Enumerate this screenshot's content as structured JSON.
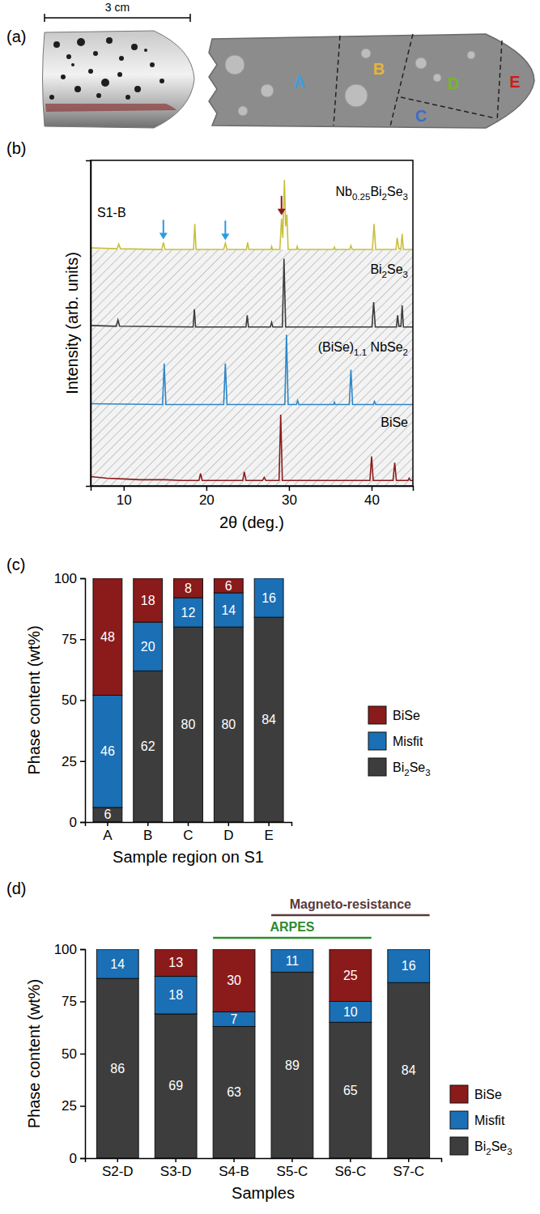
{
  "diagram": {
    "panel": "(a)",
    "scale_bar": "3 cm",
    "regions": [
      {
        "label": "A",
        "color": "#3a9fe0"
      },
      {
        "label": "B",
        "color": "#e6b43a"
      },
      {
        "label": "C",
        "color": "#3a6cc8"
      },
      {
        "label": "D",
        "color": "#76b52e"
      },
      {
        "label": "E",
        "color": "#d01a1a"
      }
    ]
  },
  "chart_data": [
    {
      "type": "line",
      "panel": "(b)",
      "x_label": "2θ (deg.)",
      "y_label": "Intensity (arb. units)",
      "xlim": [
        6,
        45
      ],
      "xticks": [
        10,
        20,
        30,
        40
      ],
      "ylim": [
        0,
        4.2
      ],
      "yticks": [],
      "tick_labels": "x",
      "annotations": [
        {
          "text": "S1-B"
        }
      ],
      "arrows": [
        {
          "x": 14.8,
          "color": "#2b9be0"
        },
        {
          "x": 22.3,
          "color": "#2b9be0"
        },
        {
          "x": 29.1,
          "color": "#8b1a1a"
        }
      ],
      "series": [
        {
          "name": "Nb0.25Bi2Se3",
          "color": "#c9bf3e",
          "x": [
            6,
            9.2,
            9.4,
            9.6,
            14.6,
            14.8,
            15.0,
            18.45,
            18.6,
            18.75,
            22.1,
            22.3,
            22.5,
            24.85,
            25.0,
            25.15,
            27.8,
            27.9,
            28.0,
            28.9,
            29.1,
            29.25,
            29.45,
            29.6,
            29.75,
            29.9,
            30.9,
            31.0,
            31.1,
            35.4,
            35.5,
            35.6,
            37.35,
            37.5,
            37.65,
            40.1,
            40.3,
            40.5,
            42.95,
            43.1,
            43.3,
            43.55,
            43.7,
            43.85,
            45
          ],
          "values": [
            3.07,
            3.06,
            3.12,
            3.06,
            3.05,
            3.14,
            3.05,
            3.05,
            3.38,
            3.05,
            3.05,
            3.13,
            3.05,
            3.05,
            3.14,
            3.05,
            3.05,
            3.09,
            3.05,
            3.05,
            3.45,
            3.2,
            3.95,
            3.35,
            3.5,
            3.05,
            3.05,
            3.09,
            3.05,
            3.05,
            3.08,
            3.05,
            3.05,
            3.1,
            3.05,
            3.05,
            3.38,
            3.05,
            3.05,
            3.2,
            3.06,
            3.06,
            3.25,
            3.05,
            3.05
          ]
        },
        {
          "name": "Bi2Se3",
          "color": "#3c3c3c",
          "x": [
            6,
            9.1,
            9.3,
            9.5,
            18.4,
            18.55,
            18.7,
            24.8,
            24.95,
            25.1,
            27.75,
            27.9,
            28.05,
            29.2,
            29.4,
            29.6,
            40.05,
            40.25,
            40.45,
            43.0,
            43.15,
            43.3,
            43.55,
            43.7,
            43.85,
            45
          ],
          "values": [
            2.07,
            2.06,
            2.14,
            2.06,
            2.05,
            2.28,
            2.05,
            2.05,
            2.2,
            2.05,
            2.05,
            2.11,
            2.05,
            2.05,
            2.93,
            2.05,
            2.05,
            2.37,
            2.05,
            2.05,
            2.2,
            2.06,
            2.06,
            2.33,
            2.05,
            2.05
          ]
        },
        {
          "name": "(BiSe)1.1 NbSe2",
          "color": "#2b86c8",
          "x": [
            6,
            14.7,
            14.9,
            15.1,
            22.1,
            22.3,
            22.5,
            29.5,
            29.7,
            29.9,
            30.9,
            31.05,
            31.2,
            35.4,
            35.5,
            35.6,
            37.3,
            37.5,
            37.7,
            40.2,
            40.35,
            40.5,
            45
          ],
          "values": [
            1.06,
            1.05,
            1.58,
            1.05,
            1.05,
            1.58,
            1.05,
            1.05,
            1.95,
            1.05,
            1.05,
            1.1,
            1.05,
            1.05,
            1.08,
            1.05,
            1.05,
            1.5,
            1.05,
            1.05,
            1.09,
            1.05,
            1.05
          ]
        },
        {
          "name": "BiSe",
          "color": "#8b1a1a",
          "x": [
            6,
            7,
            8,
            10,
            12,
            15,
            17,
            19.1,
            19.3,
            19.5,
            24.4,
            24.6,
            24.8,
            26.8,
            27.0,
            27.2,
            28.8,
            29.0,
            29.2,
            33,
            36,
            39.8,
            40.0,
            40.2,
            42.6,
            42.8,
            43.0,
            44.4,
            44.55,
            44.7,
            45
          ],
          "values": [
            0.12,
            0.11,
            0.1,
            0.09,
            0.08,
            0.08,
            0.07,
            0.07,
            0.16,
            0.07,
            0.07,
            0.18,
            0.07,
            0.07,
            0.11,
            0.07,
            0.07,
            0.92,
            0.07,
            0.07,
            0.07,
            0.07,
            0.38,
            0.07,
            0.07,
            0.3,
            0.07,
            0.07,
            0.1,
            0.07,
            0.07
          ]
        }
      ]
    },
    {
      "type": "bar",
      "panel": "(c)",
      "stacked": true,
      "data_labels": true,
      "legend": "right",
      "x_label": "Sample region on S1",
      "y_label": "Phase content (wt%)",
      "categories": [
        "A",
        "B",
        "C",
        "D",
        "E"
      ],
      "ylim": [
        0,
        100
      ],
      "yticks": [
        0,
        25,
        50,
        75,
        100
      ],
      "series": [
        {
          "name": "Bi2Se3",
          "color": "#3d3d3d",
          "values": [
            6,
            62,
            80,
            80,
            84
          ]
        },
        {
          "name": "Misfit",
          "color": "#1a6fb5",
          "values": [
            46,
            20,
            12,
            14,
            16
          ]
        },
        {
          "name": "BiSe",
          "color": "#8b1a1a",
          "values": [
            48,
            18,
            8,
            6,
            null
          ]
        }
      ]
    },
    {
      "type": "bar",
      "panel": "(d)",
      "stacked": true,
      "data_labels": true,
      "legend": "right",
      "x_label": "Samples",
      "y_label": "Phase content (wt%)",
      "categories": [
        "S2-D",
        "S3-D",
        "S4-B",
        "S5-C",
        "S6-C",
        "S7-C"
      ],
      "ylim": [
        0,
        100
      ],
      "yticks": [
        0,
        25,
        50,
        75,
        100
      ],
      "annotations": [
        {
          "text": "Magneto-resistance",
          "from": "S5-C",
          "to": "S7-C",
          "color": "#5a3a3a"
        },
        {
          "text": "ARPES",
          "from": "S4-B",
          "to": "S6-C",
          "color": "#2e8b2e"
        }
      ],
      "series": [
        {
          "name": "Bi2Se3",
          "color": "#3d3d3d",
          "values": [
            86,
            69,
            63,
            89,
            65,
            84
          ]
        },
        {
          "name": "Misfit",
          "color": "#1a6fb5",
          "values": [
            14,
            18,
            7,
            11,
            10,
            16
          ]
        },
        {
          "name": "BiSe",
          "color": "#8b1a1a",
          "values": [
            null,
            13,
            30,
            null,
            25,
            null
          ]
        }
      ]
    }
  ]
}
